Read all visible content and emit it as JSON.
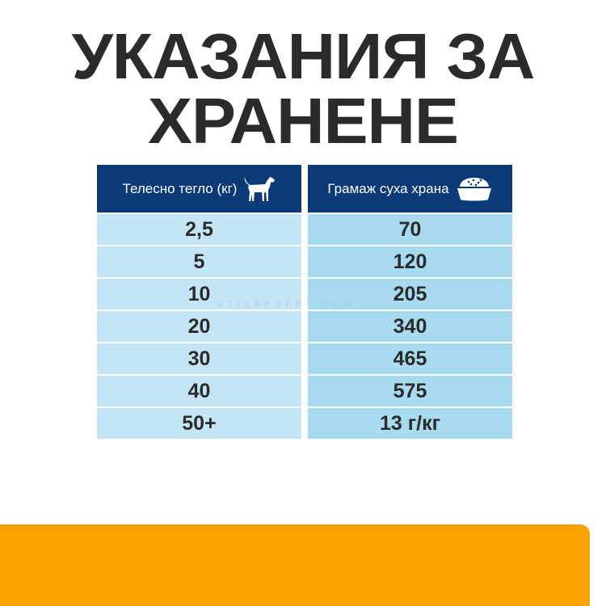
{
  "title": {
    "line1": "УКАЗАНИЯ ЗА",
    "line2": "ХРАНЕНЕ"
  },
  "table": {
    "headers": [
      {
        "label": "Телесно тегло (кг)",
        "icon": "dog-icon"
      },
      {
        "label": "Грамаж суха храна",
        "icon": "food-bowl-icon"
      }
    ],
    "rows": [
      [
        "2,5",
        "70"
      ],
      [
        "5",
        "120"
      ],
      [
        "10",
        "205"
      ],
      [
        "20",
        "340"
      ],
      [
        "30",
        "465"
      ],
      [
        "40",
        "575"
      ],
      [
        "50+",
        "13 г/кг"
      ]
    ]
  },
  "watermark": "ariakennel.com",
  "colors": {
    "header": "#0b3a78",
    "cell_left": "#c4e5f5",
    "cell_right": "#a8dbf0",
    "accent_bar": "#fba200",
    "title": "#2b2b2b"
  }
}
